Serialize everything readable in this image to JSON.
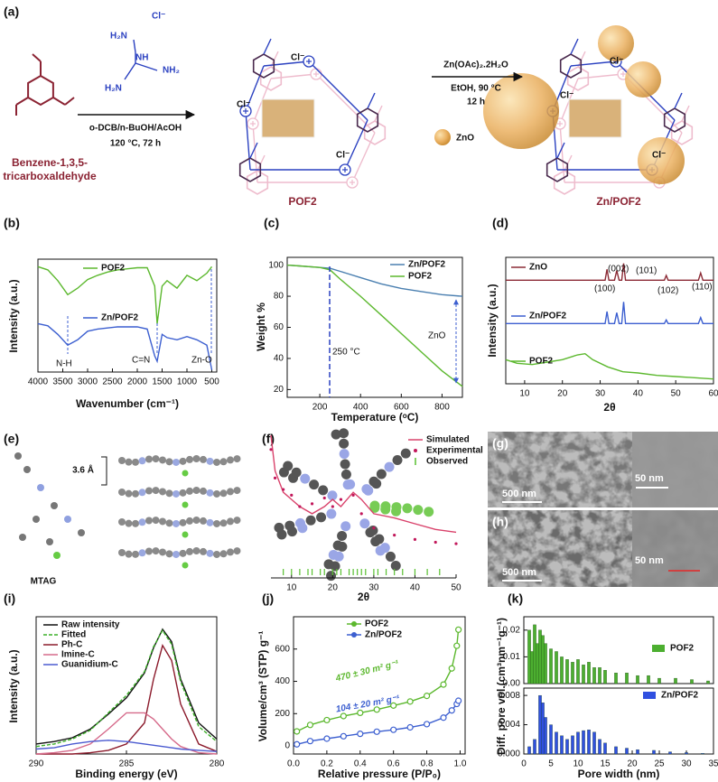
{
  "scheme": {
    "label": "(a)",
    "reactant_name": [
      "Benzene-1,3,5-",
      "tricarboxaldehyde"
    ],
    "reagent": [
      "H₂N",
      "Cl⁻",
      "NH₂",
      "H₂N",
      "NH"
    ],
    "conditions_1": [
      "o-DCB/n-BuOH/AcOH",
      "120 °C, 72 h"
    ],
    "product_1": "POF2",
    "conditions_2": [
      "Zn(OAc)₂.2H₂O",
      "EtOH, 90 °C",
      "12 h"
    ],
    "zno_legend": "ZnO",
    "product_2": "Zn/POF2",
    "structure_labels": [
      "Cl⁻",
      "Cl⁻",
      "Cl⁻",
      "Cl⁻",
      "Cl⁻",
      "Cl⁻"
    ]
  },
  "images": {
    "e": {
      "label": "(e)",
      "spacing": "3.6 Å",
      "molecule": "MTAG"
    },
    "g": {
      "label": "(g)",
      "scale_bars": [
        "500 nm",
        "50 nm"
      ]
    },
    "h": {
      "label": "(h)",
      "scale_bars": [
        "500 nm",
        "50 nm"
      ]
    }
  },
  "panels": [
    {
      "type": "line",
      "label": "(b)",
      "xlabel": "Wavenumber (cm⁻¹)",
      "ylabel": "Intensity (a.u.)",
      "xlim": [
        4000,
        400
      ],
      "ylim": [
        0,
        1.05
      ],
      "xticks": [
        4000,
        3500,
        3000,
        2500,
        2000,
        1500,
        1000,
        500
      ],
      "annotations": [
        "N-H",
        "C=N",
        "Zn-O"
      ],
      "series": [
        {
          "name": "POF2",
          "color": "#5cb82e",
          "style": "line",
          "x": [
            4000,
            3800,
            3600,
            3400,
            3200,
            3000,
            2800,
            2600,
            2400,
            2200,
            2000,
            1800,
            1650,
            1600,
            1500,
            1400,
            1200,
            1000,
            800,
            600,
            500
          ],
          "values": [
            0.98,
            0.95,
            0.85,
            0.72,
            0.78,
            0.86,
            0.9,
            0.93,
            0.95,
            0.96,
            0.97,
            0.97,
            0.8,
            0.45,
            0.8,
            0.85,
            0.78,
            0.9,
            0.85,
            0.92,
            0.98
          ]
        },
        {
          "name": "Zn/POF2",
          "color": "#3c5fd0",
          "style": "line",
          "x": [
            4000,
            3800,
            3600,
            3400,
            3200,
            3000,
            2800,
            2600,
            2400,
            2200,
            2000,
            1800,
            1650,
            1600,
            1500,
            1400,
            1200,
            1000,
            800,
            600,
            500
          ],
          "values": [
            0.45,
            0.43,
            0.35,
            0.25,
            0.3,
            0.38,
            0.4,
            0.41,
            0.42,
            0.42,
            0.42,
            0.4,
            0.15,
            0.1,
            0.35,
            0.32,
            0.3,
            0.33,
            0.3,
            0.25,
            0.02
          ]
        }
      ]
    },
    {
      "type": "line",
      "label": "(c)",
      "xlabel": "Temperature (ᵒC)",
      "ylabel": "Weight %",
      "xlim": [
        40,
        900
      ],
      "ylim": [
        15,
        105
      ],
      "xticks": [
        200,
        400,
        600,
        800
      ],
      "yticks": [
        20,
        40,
        60,
        80,
        100
      ],
      "annotations": [
        "250 °C",
        "ZnO"
      ],
      "series": [
        {
          "name": "Zn/POF2",
          "color": "#4a7fb0",
          "style": "line",
          "x": [
            40,
            100,
            200,
            250,
            300,
            400,
            500,
            600,
            700,
            800,
            900
          ],
          "values": [
            100,
            99.5,
            98.5,
            98,
            96,
            92,
            88,
            85,
            83,
            81,
            80
          ]
        },
        {
          "name": "POF2",
          "color": "#5cb82e",
          "style": "line",
          "x": [
            40,
            100,
            200,
            250,
            300,
            400,
            500,
            600,
            700,
            800,
            900
          ],
          "values": [
            100,
            99.5,
            98.5,
            97,
            91,
            80,
            68,
            56,
            44,
            32,
            22
          ]
        }
      ]
    },
    {
      "type": "line",
      "label": "(d)",
      "xlabel": "2θ",
      "ylabel": "Intensity (a.u.)",
      "xlim": [
        5,
        60
      ],
      "ylim": [
        0,
        1.05
      ],
      "xticks": [
        10,
        20,
        30,
        40,
        50,
        60
      ],
      "annotations": [
        "(100)",
        "(002)",
        "(101)",
        "(102)",
        "(110)"
      ],
      "series": [
        {
          "name": "ZnO",
          "color": "#8b2a35",
          "style": "line",
          "x": [
            5,
            10,
            20,
            30,
            31.3,
            31.8,
            32.3,
            33.8,
            34.4,
            35,
            35.7,
            36.2,
            36.7,
            40,
            47,
            47.5,
            48,
            56,
            56.6,
            57.2,
            60
          ],
          "values": [
            0.86,
            0.86,
            0.86,
            0.86,
            0.86,
            0.95,
            0.86,
            0.86,
            0.94,
            0.86,
            0.86,
            1.0,
            0.86,
            0.86,
            0.86,
            0.9,
            0.86,
            0.86,
            0.92,
            0.86,
            0.86
          ]
        },
        {
          "name": "Zn/POF2",
          "color": "#3c5fd0",
          "style": "line",
          "x": [
            5,
            10,
            20,
            30,
            31.3,
            31.8,
            32.3,
            33.8,
            34.4,
            35,
            35.7,
            36.2,
            36.7,
            40,
            47,
            47.5,
            48,
            56,
            56.6,
            57.2,
            60
          ],
          "values": [
            0.5,
            0.5,
            0.5,
            0.5,
            0.5,
            0.6,
            0.5,
            0.5,
            0.59,
            0.5,
            0.5,
            0.68,
            0.5,
            0.5,
            0.5,
            0.53,
            0.5,
            0.5,
            0.55,
            0.5,
            0.5
          ]
        },
        {
          "name": "POF2",
          "color": "#5cb82e",
          "style": "line",
          "x": [
            5,
            8,
            12,
            16,
            20,
            24,
            26,
            28,
            32,
            36,
            40,
            45,
            50,
            55,
            60
          ],
          "values": [
            0.2,
            0.17,
            0.16,
            0.18,
            0.2,
            0.24,
            0.25,
            0.2,
            0.14,
            0.1,
            0.09,
            0.07,
            0.06,
            0.05,
            0.04
          ]
        }
      ]
    },
    {
      "type": "line",
      "label": "(f)",
      "xlabel": "2θ",
      "xlim": [
        5,
        50
      ],
      "ylim": [
        0,
        1
      ],
      "xticks": [
        10,
        20,
        30,
        40,
        50
      ],
      "series": [
        {
          "name": "Simulated",
          "color": "#d9426b",
          "style": "line",
          "x": [
            5,
            6,
            8,
            10,
            12,
            15,
            18,
            20,
            22,
            25,
            27,
            30,
            35,
            40,
            45,
            50
          ],
          "values": [
            1.0,
            0.75,
            0.6,
            0.55,
            0.5,
            0.45,
            0.5,
            0.55,
            0.5,
            0.6,
            0.55,
            0.45,
            0.42,
            0.38,
            0.34,
            0.32
          ]
        },
        {
          "name": "Experimental",
          "color": "#c2185b",
          "style": "dots",
          "x": [
            5,
            6,
            8,
            10,
            12,
            15,
            18,
            20,
            22,
            25,
            27,
            30,
            35,
            40,
            45,
            50
          ],
          "values": [
            0.9,
            0.7,
            0.62,
            0.58,
            0.5,
            0.52,
            0.56,
            0.5,
            0.55,
            0.58,
            0.45,
            0.35,
            0.3,
            0.27,
            0.25,
            0.24
          ]
        },
        {
          "name": "Observed",
          "color": "#58c030",
          "style": "ticks",
          "x": [
            8,
            10,
            12,
            14,
            15,
            17,
            18,
            20,
            21,
            22,
            24,
            25,
            26,
            27,
            28,
            30,
            31,
            33,
            35,
            37,
            40,
            43,
            46
          ]
        }
      ]
    },
    {
      "type": "line",
      "label": "(i)",
      "xlabel": "Binding energy (eV)",
      "ylabel": "Intensity (a.u.)",
      "xlim": [
        290,
        280
      ],
      "ylim": [
        0,
        1.1
      ],
      "xticks": [
        290,
        285,
        280
      ],
      "series": [
        {
          "name": "Raw intensity",
          "color": "#111111",
          "style": "line",
          "x": [
            290,
            289,
            288,
            287,
            286,
            285,
            284,
            283.5,
            283,
            282.5,
            282,
            281,
            280
          ],
          "values": [
            0.08,
            0.1,
            0.13,
            0.2,
            0.32,
            0.45,
            0.65,
            0.85,
            1.0,
            0.9,
            0.6,
            0.25,
            0.12
          ]
        },
        {
          "name": "Fitted",
          "color": "#3cb028",
          "style": "line",
          "dashed": true,
          "x": [
            290,
            289,
            288,
            287,
            286,
            285,
            284,
            283.5,
            283,
            282.5,
            282,
            281,
            280
          ],
          "values": [
            0.06,
            0.08,
            0.12,
            0.19,
            0.33,
            0.47,
            0.66,
            0.86,
            0.99,
            0.88,
            0.58,
            0.22,
            0.1
          ]
        },
        {
          "name": "Ph-C",
          "color": "#8b1a2b",
          "style": "line",
          "x": [
            290,
            289,
            288,
            287,
            286,
            285,
            284,
            283.5,
            283,
            282.5,
            282,
            281,
            280
          ],
          "values": [
            0,
            0,
            0,
            0.01,
            0.03,
            0.08,
            0.25,
            0.6,
            0.87,
            0.75,
            0.4,
            0.08,
            0.02
          ]
        },
        {
          "name": "Imine-C",
          "color": "#d66a8a",
          "style": "line",
          "x": [
            290,
            289,
            288,
            287,
            286,
            285,
            284,
            283.5,
            283,
            282.5,
            282,
            281,
            280
          ],
          "values": [
            0,
            0.01,
            0.03,
            0.08,
            0.2,
            0.33,
            0.33,
            0.28,
            0.2,
            0.12,
            0.06,
            0.01,
            0
          ]
        },
        {
          "name": "Guanidium-C",
          "color": "#4a5ad0",
          "style": "line",
          "x": [
            290,
            289,
            288,
            287,
            286,
            285,
            284,
            283.5,
            283,
            282.5,
            282,
            281,
            280
          ],
          "values": [
            0.04,
            0.05,
            0.08,
            0.1,
            0.11,
            0.1,
            0.08,
            0.07,
            0.06,
            0.05,
            0.04,
            0.03,
            0.02
          ]
        }
      ]
    },
    {
      "type": "line",
      "label": "(j)",
      "xlabel": "Relative pressure (P/P₀)",
      "ylabel": "Volume/cm³ (STP) g⁻¹",
      "xlim": [
        0,
        1.03
      ],
      "ylim": [
        -50,
        800
      ],
      "xticks": [
        {
          "value": 0,
          "label": "0.0"
        },
        0.2,
        0.4,
        0.6,
        0.8,
        {
          "value": 1,
          "label": "1.0"
        }
      ],
      "yticks": [
        0,
        200,
        400,
        600
      ],
      "annotations": [
        "470 ± 30 m² g⁻¹",
        "104 ± 20 m² g⁻¹"
      ],
      "series": [
        {
          "name": "POF2",
          "color": "#5cb82e",
          "style": "markers",
          "x": [
            0.02,
            0.1,
            0.2,
            0.3,
            0.4,
            0.5,
            0.6,
            0.7,
            0.8,
            0.9,
            0.95,
            0.98,
            0.99
          ],
          "values": [
            90,
            130,
            160,
            185,
            205,
            225,
            250,
            275,
            310,
            380,
            480,
            620,
            720
          ]
        },
        {
          "name": "Zn/POF2",
          "color": "#3c5fd0",
          "style": "markers",
          "x": [
            0.02,
            0.1,
            0.2,
            0.3,
            0.4,
            0.5,
            0.6,
            0.7,
            0.8,
            0.9,
            0.95,
            0.98,
            0.99
          ],
          "values": [
            10,
            30,
            45,
            60,
            75,
            88,
            100,
            115,
            135,
            175,
            220,
            260,
            280
          ]
        }
      ]
    },
    {
      "type": "bar",
      "label": "(k)",
      "ylabel": "Diff. pore vol.(cm³nm⁻¹g⁻¹)",
      "xlim": [
        0,
        35
      ],
      "ylim": [
        0,
        0.025
      ],
      "yticks": [
        {
          "value": 0,
          "label": "0.00"
        },
        0.01,
        0.02
      ],
      "series": [
        {
          "name": "POF2",
          "color": "#4caf30",
          "style": "bars",
          "x": [
            1,
            1.5,
            2,
            2.5,
            3,
            3.5,
            4,
            5,
            6,
            7,
            8,
            9,
            10,
            11,
            12,
            13,
            14,
            15,
            17,
            19,
            21,
            23,
            25,
            28,
            31,
            34
          ],
          "values": [
            0.02,
            0.012,
            0.022,
            0.015,
            0.02,
            0.018,
            0.015,
            0.013,
            0.012,
            0.01,
            0.009,
            0.008,
            0.009,
            0.007,
            0.008,
            0.006,
            0.006,
            0.005,
            0.004,
            0.004,
            0.003,
            0.003,
            0.002,
            0.002,
            0.0015,
            0.001
          ]
        }
      ]
    },
    {
      "type": "bar",
      "xlabel": "Pore width (nm)",
      "xlim": [
        0,
        35
      ],
      "ylim": [
        0,
        0.009
      ],
      "xticks": [
        0,
        5,
        10,
        15,
        20,
        25,
        30,
        35
      ],
      "yticks": [
        {
          "value": 0,
          "label": "0.000"
        },
        0.004,
        0.008
      ],
      "series": [
        {
          "name": "Zn/POF2",
          "color": "#3050e0",
          "style": "bars",
          "x": [
            1,
            2,
            3,
            3.5,
            4,
            5,
            6,
            7,
            8,
            9,
            10,
            11,
            12,
            13,
            14,
            15,
            17,
            19,
            21,
            24,
            27,
            30,
            33
          ],
          "values": [
            0.001,
            0.002,
            0.008,
            0.007,
            0.005,
            0.004,
            0.003,
            0.0025,
            0.002,
            0.0025,
            0.003,
            0.0032,
            0.0033,
            0.003,
            0.002,
            0.0015,
            0.001,
            0.0008,
            0.0006,
            0.0005,
            0.0003,
            0.0002,
            0.0001
          ]
        }
      ]
    }
  ]
}
